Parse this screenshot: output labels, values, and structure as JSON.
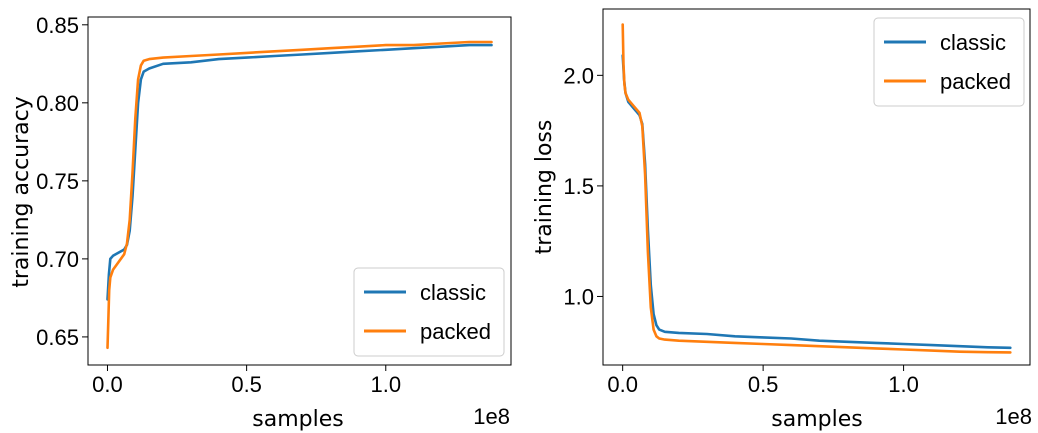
{
  "chart_data": [
    {
      "type": "line",
      "title": "",
      "xlabel": "samples",
      "ylabel": "training accuracy",
      "x_offset_label": "1e8",
      "xlim": [
        -0.07,
        1.45
      ],
      "ylim": [
        0.632,
        0.855
      ],
      "x_ticks": [
        0.0,
        0.5,
        1.0
      ],
      "x_tick_labels": [
        "0.0",
        "0.5",
        "1.0"
      ],
      "y_ticks": [
        0.65,
        0.7,
        0.75,
        0.8,
        0.85
      ],
      "y_tick_labels": [
        "0.65",
        "0.70",
        "0.75",
        "0.80",
        "0.85"
      ],
      "legend_position": "lower-right",
      "series": [
        {
          "name": "classic",
          "color": "#1f77b4",
          "x": [
            0.0,
            0.005,
            0.01,
            0.02,
            0.04,
            0.06,
            0.07,
            0.08,
            0.09,
            0.1,
            0.11,
            0.12,
            0.13,
            0.15,
            0.2,
            0.3,
            0.4,
            0.5,
            0.6,
            0.7,
            0.8,
            0.9,
            1.0,
            1.1,
            1.2,
            1.3,
            1.38
          ],
          "y": [
            0.674,
            0.69,
            0.7,
            0.702,
            0.704,
            0.706,
            0.709,
            0.718,
            0.74,
            0.77,
            0.8,
            0.815,
            0.82,
            0.822,
            0.825,
            0.826,
            0.828,
            0.829,
            0.83,
            0.831,
            0.832,
            0.833,
            0.834,
            0.835,
            0.836,
            0.837,
            0.837
          ]
        },
        {
          "name": "packed",
          "color": "#ff7f0e",
          "x": [
            0.0,
            0.003,
            0.006,
            0.01,
            0.02,
            0.04,
            0.06,
            0.07,
            0.08,
            0.09,
            0.1,
            0.11,
            0.12,
            0.13,
            0.15,
            0.2,
            0.3,
            0.4,
            0.5,
            0.6,
            0.7,
            0.8,
            0.9,
            1.0,
            1.1,
            1.2,
            1.3,
            1.38
          ],
          "y": [
            0.643,
            0.66,
            0.68,
            0.688,
            0.693,
            0.698,
            0.703,
            0.71,
            0.725,
            0.755,
            0.79,
            0.815,
            0.824,
            0.827,
            0.828,
            0.829,
            0.83,
            0.831,
            0.832,
            0.833,
            0.834,
            0.835,
            0.836,
            0.837,
            0.837,
            0.838,
            0.839,
            0.839
          ]
        }
      ]
    },
    {
      "type": "line",
      "title": "",
      "xlabel": "samples",
      "ylabel": "training loss",
      "x_offset_label": "1e8",
      "xlim": [
        -0.07,
        1.45
      ],
      "ylim": [
        0.69,
        2.3
      ],
      "x_ticks": [
        0.0,
        0.5,
        1.0
      ],
      "x_tick_labels": [
        "0.0",
        "0.5",
        "1.0"
      ],
      "y_ticks": [
        1.0,
        1.5,
        2.0
      ],
      "y_tick_labels": [
        "1.0",
        "1.5",
        "2.0"
      ],
      "legend_position": "upper-right",
      "series": [
        {
          "name": "classic",
          "color": "#1f77b4",
          "x": [
            0.0,
            0.005,
            0.01,
            0.02,
            0.04,
            0.06,
            0.07,
            0.08,
            0.09,
            0.1,
            0.11,
            0.12,
            0.13,
            0.15,
            0.2,
            0.3,
            0.4,
            0.5,
            0.6,
            0.7,
            0.8,
            0.9,
            1.0,
            1.1,
            1.2,
            1.3,
            1.38
          ],
          "y": [
            2.09,
            1.98,
            1.92,
            1.88,
            1.85,
            1.82,
            1.78,
            1.6,
            1.3,
            1.05,
            0.92,
            0.87,
            0.85,
            0.84,
            0.835,
            0.83,
            0.82,
            0.815,
            0.81,
            0.8,
            0.795,
            0.79,
            0.785,
            0.78,
            0.775,
            0.77,
            0.768
          ]
        },
        {
          "name": "packed",
          "color": "#ff7f0e",
          "x": [
            0.0,
            0.003,
            0.006,
            0.01,
            0.02,
            0.04,
            0.06,
            0.07,
            0.08,
            0.09,
            0.1,
            0.11,
            0.12,
            0.13,
            0.15,
            0.2,
            0.3,
            0.4,
            0.5,
            0.6,
            0.7,
            0.8,
            0.9,
            1.0,
            1.1,
            1.2,
            1.3,
            1.38
          ],
          "y": [
            2.23,
            2.05,
            1.96,
            1.92,
            1.89,
            1.86,
            1.83,
            1.77,
            1.55,
            1.2,
            0.95,
            0.85,
            0.82,
            0.81,
            0.805,
            0.8,
            0.795,
            0.79,
            0.785,
            0.78,
            0.775,
            0.77,
            0.765,
            0.76,
            0.755,
            0.75,
            0.748,
            0.747
          ]
        }
      ]
    }
  ]
}
